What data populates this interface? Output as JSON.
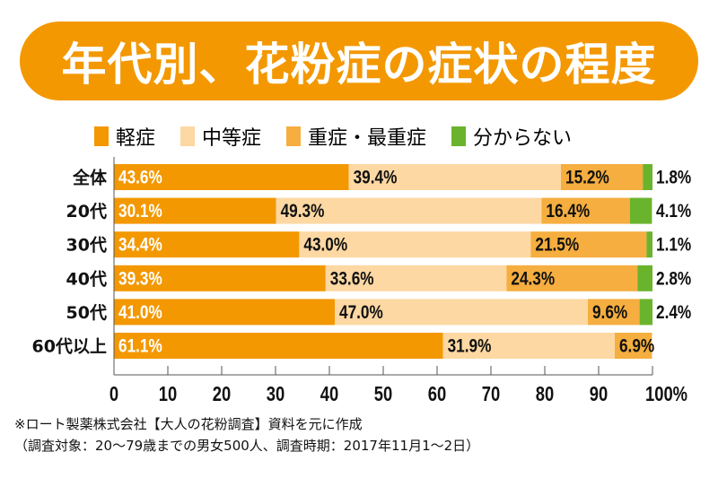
{
  "chart_data": {
    "type": "bar",
    "orientation": "horizontal-stacked",
    "title": "年代別、花粉症の症状の程度",
    "categories": [
      "全体",
      "20代",
      "30代",
      "40代",
      "50代",
      "60代以上"
    ],
    "series": [
      {
        "name": "軽症",
        "color": "#f39800",
        "values": [
          43.6,
          30.1,
          34.4,
          39.3,
          41.0,
          61.1
        ],
        "labels": [
          "43.6%",
          "30.1%",
          "34.4%",
          "39.3%",
          "41.0%",
          "61.1%"
        ]
      },
      {
        "name": "中等症",
        "color": "#fdd8a3",
        "values": [
          39.4,
          49.3,
          43.0,
          33.6,
          47.0,
          31.9
        ],
        "labels": [
          "39.4%",
          "49.3%",
          "43.0%",
          "33.6%",
          "47.0%",
          "31.9%"
        ]
      },
      {
        "name": "重症・最重症",
        "color": "#f5ae3f",
        "values": [
          15.2,
          16.4,
          21.5,
          24.3,
          9.6,
          6.9
        ],
        "labels": [
          "15.2%",
          "16.4%",
          "21.5%",
          "24.3%",
          "9.6%",
          "6.9%"
        ]
      },
      {
        "name": "分からない",
        "color": "#6ab42d",
        "values": [
          1.8,
          4.1,
          1.1,
          2.8,
          2.4,
          null
        ],
        "labels": [
          "1.8%",
          "4.1%",
          "1.1%",
          "2.8%",
          "2.4%",
          null
        ]
      }
    ],
    "xticks": [
      "0",
      "10",
      "20",
      "30",
      "40",
      "50",
      "60",
      "70",
      "80",
      "90",
      "100%"
    ],
    "xlim": [
      0,
      100
    ],
    "legend_position": "top"
  },
  "footnotes": {
    "source": "※ロート製薬株式会社【大人の花粉調査】資料を元に作成",
    "survey": "（調査対象：20～79歳までの男女500人、調査時期：2017年11月1～2日）"
  }
}
